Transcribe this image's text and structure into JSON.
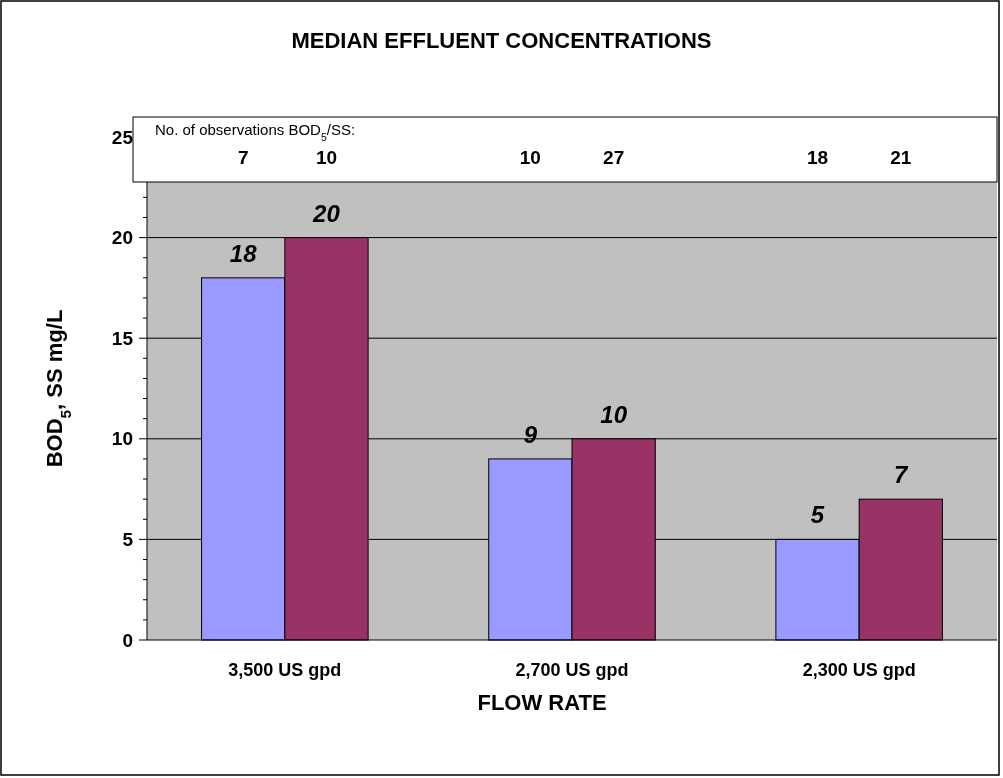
{
  "chart_data": {
    "type": "bar",
    "title": "MEDIAN EFFLUENT CONCENTRATIONS",
    "xlabel": "FLOW RATE",
    "ylabel": "BOD$_{5}$, SS mg/L",
    "categories": [
      "3,500 US gpd",
      "2,700 US gpd",
      "2,300 US gpd"
    ],
    "series": [
      {
        "color": "#9999ff",
        "values": [
          18,
          9,
          5
        ]
      },
      {
        "color": "#993366",
        "values": [
          20,
          10,
          7
        ]
      }
    ],
    "ylim": [
      0,
      25
    ],
    "yticks": [
      0,
      {
        "value": 1,
        "label": null
      },
      {
        "value": 2,
        "label": null
      },
      {
        "value": 3,
        "label": null
      },
      {
        "value": 4,
        "label": null
      },
      5,
      {
        "value": 6,
        "label": null
      },
      {
        "value": 7,
        "label": null
      },
      {
        "value": 8,
        "label": null
      },
      {
        "value": 9,
        "label": null
      },
      10,
      {
        "value": 11,
        "label": null
      },
      {
        "value": 12,
        "label": null
      },
      {
        "value": 13,
        "label": null
      },
      {
        "value": 14,
        "label": null
      },
      15,
      {
        "value": 16,
        "label": null
      },
      {
        "value": 17,
        "label": null
      },
      {
        "value": 18,
        "label": null
      },
      {
        "value": 19,
        "label": null
      },
      20,
      {
        "value": 21,
        "label": null
      },
      {
        "value": 22,
        "label": null
      },
      {
        "value": 23,
        "label": null
      },
      {
        "value": 24,
        "label": null
      },
      25
    ],
    "grid": "y",
    "data_labels": true,
    "annotations": [
      "No. of observations BOD$_{5}$/SS:",
      "7",
      "10",
      "10",
      "27",
      "18",
      "21"
    ]
  }
}
